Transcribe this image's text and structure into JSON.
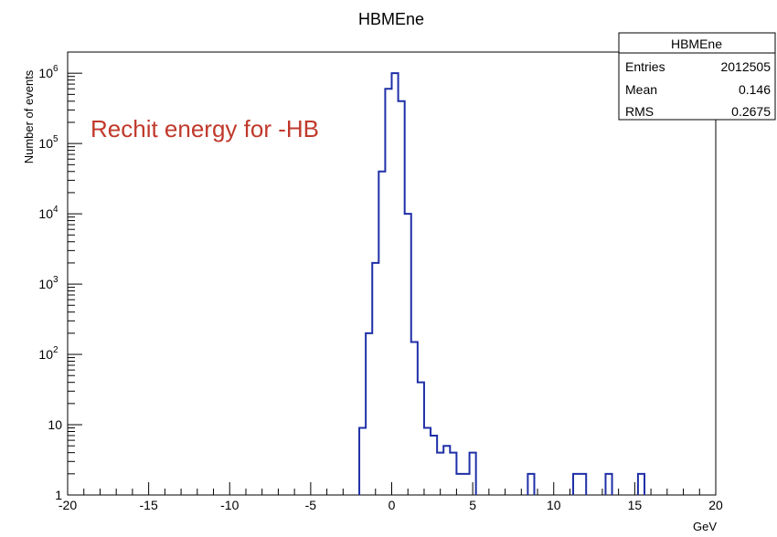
{
  "chart_data": {
    "type": "histogram",
    "title": "HBMEne",
    "xlabel": "GeV",
    "ylabel": "Number of events",
    "annotation": "Rechit energy for -HB",
    "xlim": [
      -20,
      20
    ],
    "ylim": [
      1,
      2000000
    ],
    "y_scale": "log",
    "grid": false,
    "bin_width": 0.4,
    "series_color": "#1f2fa8",
    "annotation_color": "#c0392b",
    "x_ticks": [
      -20,
      -15,
      -10,
      -5,
      0,
      5,
      10,
      15,
      20
    ],
    "x_tick_labels": [
      "-20",
      "-15",
      "-10",
      "-5",
      "0",
      "5",
      "10",
      "15",
      "20"
    ],
    "y_ticks": [
      {
        "value": 1,
        "base": "1",
        "exp": ""
      },
      {
        "value": 10,
        "base": "10",
        "exp": ""
      },
      {
        "value": 100,
        "base": "10",
        "exp": "2"
      },
      {
        "value": 1000,
        "base": "10",
        "exp": "3"
      },
      {
        "value": 10000,
        "base": "10",
        "exp": "4"
      },
      {
        "value": 100000,
        "base": "10",
        "exp": "5"
      },
      {
        "value": 1000000,
        "base": "10",
        "exp": "6"
      }
    ],
    "bins": [
      {
        "x": -2.0,
        "y": 9
      },
      {
        "x": -1.6,
        "y": 200
      },
      {
        "x": -1.2,
        "y": 2000
      },
      {
        "x": -0.8,
        "y": 40000
      },
      {
        "x": -0.4,
        "y": 600000
      },
      {
        "x": 0.0,
        "y": 1000000
      },
      {
        "x": 0.4,
        "y": 400000
      },
      {
        "x": 0.8,
        "y": 10000
      },
      {
        "x": 1.2,
        "y": 150
      },
      {
        "x": 1.6,
        "y": 40
      },
      {
        "x": 2.0,
        "y": 9
      },
      {
        "x": 2.4,
        "y": 7
      },
      {
        "x": 2.8,
        "y": 4
      },
      {
        "x": 3.2,
        "y": 5
      },
      {
        "x": 3.6,
        "y": 4
      },
      {
        "x": 4.0,
        "y": 2
      },
      {
        "x": 4.4,
        "y": 2
      },
      {
        "x": 4.8,
        "y": 4
      },
      {
        "x": 8.4,
        "y": 2
      },
      {
        "x": 11.2,
        "y": 2
      },
      {
        "x": 11.6,
        "y": 2
      },
      {
        "x": 13.2,
        "y": 2
      },
      {
        "x": 15.2,
        "y": 2
      }
    ],
    "stats_box": {
      "title": "HBMEne",
      "rows": [
        {
          "label": "Entries",
          "value": "2012505"
        },
        {
          "label": "Mean",
          "value": "0.146"
        },
        {
          "label": "RMS",
          "value": "0.2675"
        }
      ]
    }
  }
}
